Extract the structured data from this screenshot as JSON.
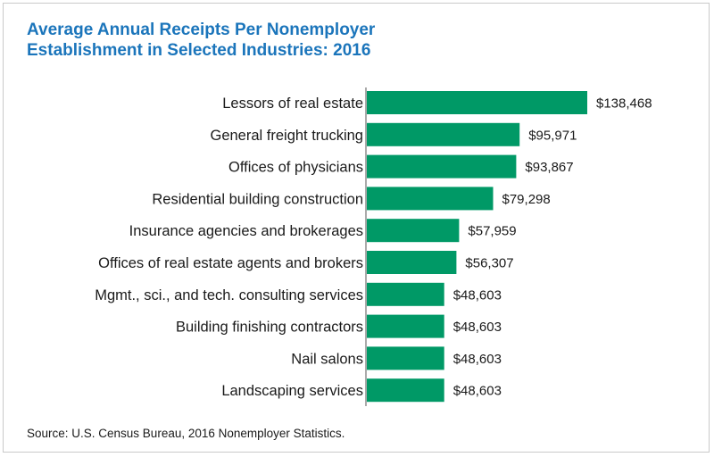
{
  "header": {
    "title_line1": "Average Annual Receipts Per Nonemployer",
    "title_line2": "Establishment in Selected Industries: 2016"
  },
  "chart_data": {
    "type": "bar",
    "orientation": "horizontal",
    "title": "Average Annual Receipts Per Nonemployer Establishment in Selected Industries: 2016",
    "xlabel": "",
    "ylabel": "",
    "grid": false,
    "bar_color": "#009966",
    "categories": [
      "Lessors of real estate",
      "General freight trucking",
      "Offices of physicians",
      "Residential building construction",
      "Insurance agencies and brokerages",
      "Offices of real estate agents and brokers",
      "Mgmt., sci., and tech. consulting services",
      "Building finishing contractors",
      "Nail salons",
      "Landscaping services"
    ],
    "values": [
      138468,
      95971,
      93867,
      79298,
      57959,
      56307,
      48603,
      48603,
      48603,
      48603
    ],
    "value_labels": [
      "$138,468",
      "$95,971",
      "$93,867",
      "$79,298",
      "$57,959",
      "$56,307",
      "$48,603",
      "$48,603",
      "$48,603",
      "$48,603"
    ]
  },
  "footer": {
    "source": "Source: U.S. Census Bureau, 2016 Nonemployer Statistics."
  }
}
